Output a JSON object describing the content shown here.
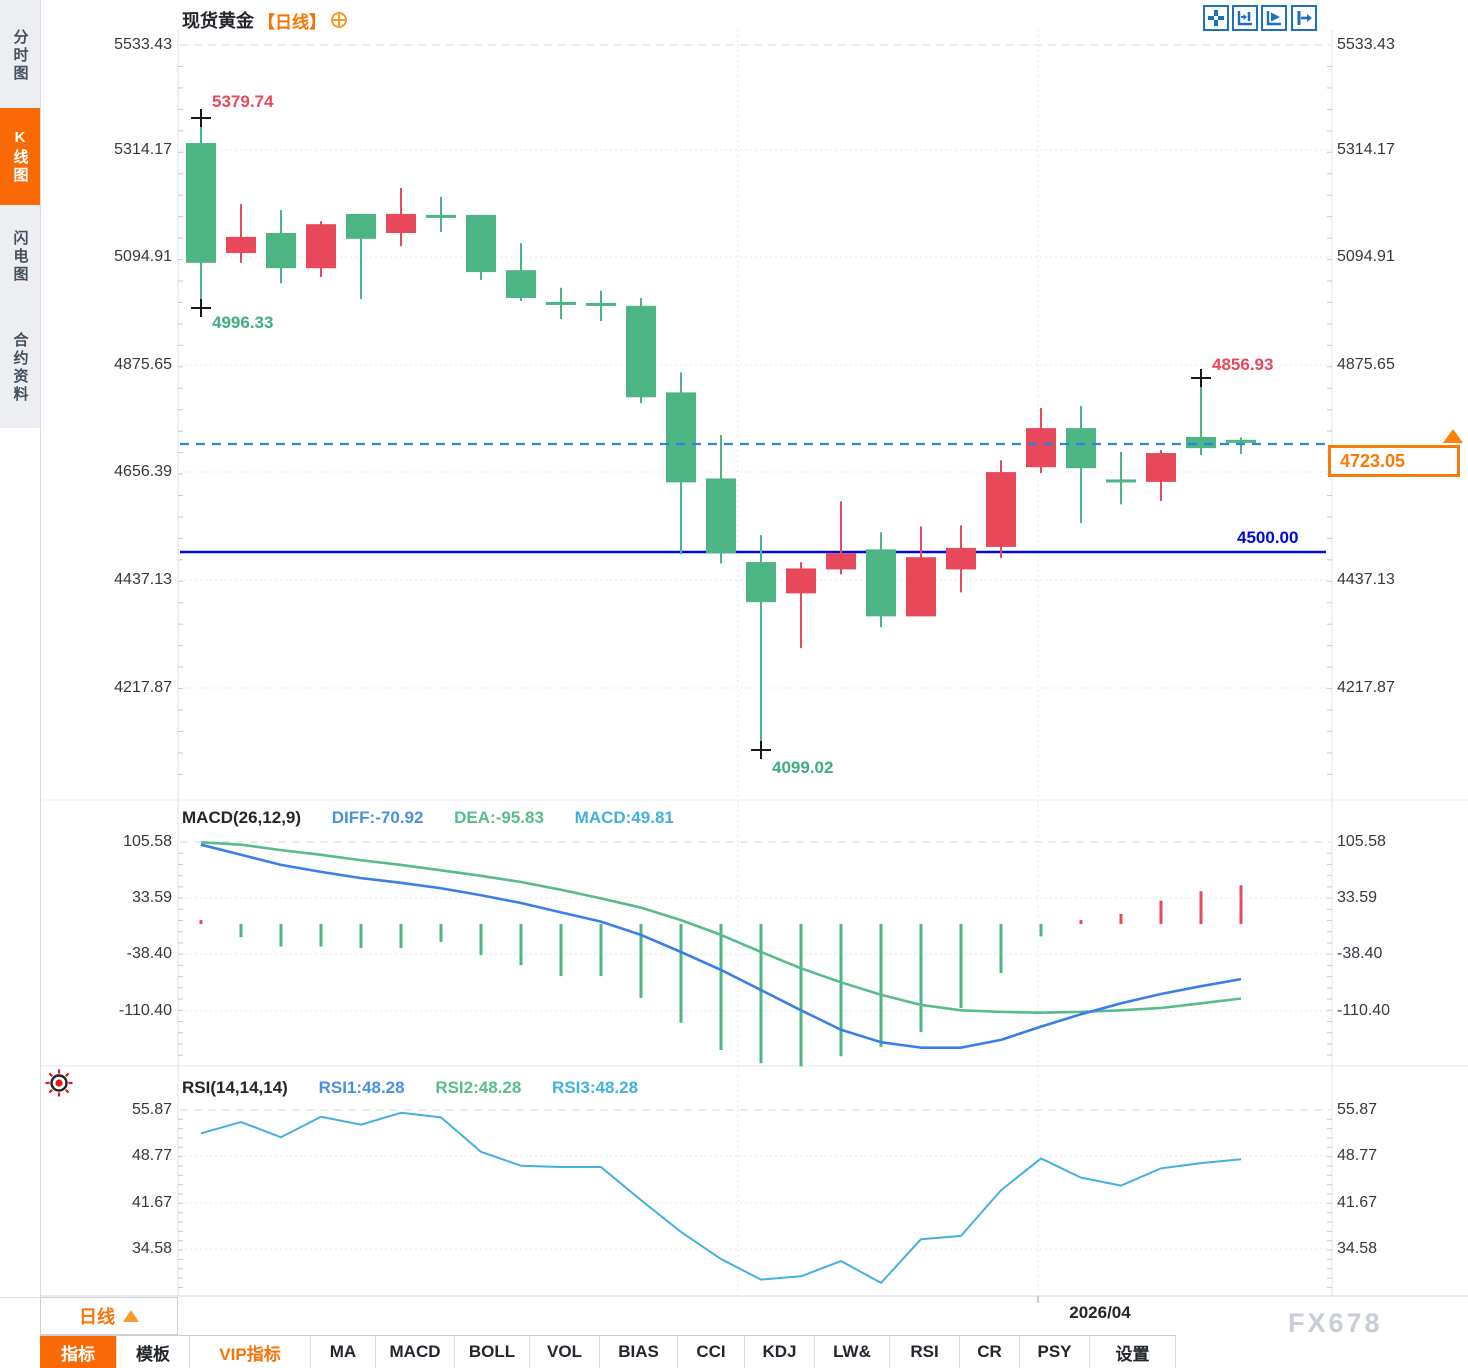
{
  "header": {
    "instrument": "现货黄金",
    "timeframe_tag": "【日线】"
  },
  "sidebar": {
    "items": [
      {
        "label": "分时图",
        "active": false
      },
      {
        "label": "K线图",
        "active": true
      },
      {
        "label": "闪电图",
        "active": false
      },
      {
        "label": "合约资料",
        "active": false
      }
    ]
  },
  "top_icons": [
    {
      "name": "move-crosshair-icon"
    },
    {
      "name": "fit-horizontal-icon"
    },
    {
      "name": "play-forward-icon"
    },
    {
      "name": "go-to-latest-icon"
    }
  ],
  "main_chart": {
    "y_axis_labels": [
      "5533.43",
      "5314.17",
      "5094.91",
      "4875.65",
      "4656.39",
      "4437.13",
      "4217.87"
    ],
    "annotations": {
      "swing_high": "5379.74",
      "first_low": "4996.33",
      "recent_high": "4856.93",
      "swing_low": "4099.02",
      "support_level": "4500.00",
      "current_price": "4723.05"
    },
    "x_axis_label": "2026/04",
    "watermark": "FX678"
  },
  "macd_panel": {
    "title": "MACD(26,12,9)",
    "diff_label": "DIFF:-70.92",
    "dea_label": "DEA:-95.83",
    "macd_label": "MACD:49.81",
    "y_axis_labels": [
      "105.58",
      "33.59",
      "-38.40",
      "-110.40"
    ]
  },
  "rsi_panel": {
    "title": "RSI(14,14,14)",
    "rsi1_label": "RSI1:48.28",
    "rsi2_label": "RSI2:48.28",
    "rsi3_label": "RSI3:48.28",
    "y_axis_labels": [
      "55.87",
      "48.77",
      "41.67",
      "34.58"
    ]
  },
  "bottom_bar": {
    "timeframe_button": "日线",
    "buttons": [
      {
        "label": "指标",
        "style": "active"
      },
      {
        "label": "模板",
        "style": ""
      },
      {
        "label": "VIP指标",
        "style": "vip"
      },
      {
        "label": "MA",
        "style": ""
      },
      {
        "label": "MACD",
        "style": ""
      },
      {
        "label": "BOLL",
        "style": ""
      },
      {
        "label": "VOL",
        "style": ""
      },
      {
        "label": "BIAS",
        "style": ""
      },
      {
        "label": "CCI",
        "style": ""
      },
      {
        "label": "KDJ",
        "style": ""
      },
      {
        "label": "LW&",
        "style": ""
      },
      {
        "label": "RSI",
        "style": ""
      },
      {
        "label": "CR",
        "style": ""
      },
      {
        "label": "PSY",
        "style": ""
      },
      {
        "label": "设置",
        "style": ""
      }
    ]
  },
  "colors": {
    "up_red": "#e8495a",
    "down_green": "#4cb583",
    "accent_orange": "#f97306",
    "support_line_blue": "#0008dd",
    "current_price_line": "#2188e8",
    "macd_diff_line": "#3a7fe8",
    "macd_dea_line": "#57bb8a",
    "rsi_line": "#45b0dd"
  },
  "chart_data": {
    "type": "candlestick",
    "instrument": "现货黄金",
    "interval": "日线",
    "price_axis_range": [
      4099.02,
      5533.43
    ],
    "candles": {
      "format": [
        "open",
        "high",
        "low",
        "close",
        "direction(u=red-up,d=green-down)"
      ],
      "data": [
        [
          5333,
          5379.74,
          4996.33,
          5088,
          "d"
        ],
        [
          5108,
          5208,
          5088,
          5141,
          "u"
        ],
        [
          5149,
          5196,
          5046,
          5077,
          "d"
        ],
        [
          5077,
          5173,
          5059,
          5167,
          "u"
        ],
        [
          5188,
          5188,
          5014,
          5137,
          "d"
        ],
        [
          5149,
          5241,
          5122,
          5188,
          "u"
        ],
        [
          5186,
          5223,
          5151,
          5181,
          "d"
        ],
        [
          5186,
          5186,
          5053,
          5069,
          "d"
        ],
        [
          5073,
          5128,
          5010,
          5016,
          "d"
        ],
        [
          5008,
          5037,
          4973,
          5002,
          "d"
        ],
        [
          5006,
          5031,
          4969,
          5000,
          "d"
        ],
        [
          5000,
          5016,
          4801,
          4813,
          "d"
        ],
        [
          4823,
          4864,
          4492,
          4639,
          "d"
        ],
        [
          4647,
          4736,
          4473,
          4494,
          "d"
        ],
        [
          4476,
          4531,
          4099.02,
          4394,
          "d"
        ],
        [
          4412,
          4476,
          4300,
          4463,
          "u"
        ],
        [
          4461,
          4600,
          4451,
          4494,
          "u"
        ],
        [
          4502,
          4537,
          4343,
          4365,
          "d"
        ],
        [
          4365,
          4549,
          4365,
          4486,
          "u"
        ],
        [
          4461,
          4551,
          4414,
          4505,
          "u"
        ],
        [
          4507,
          4684,
          4484,
          4660,
          "u"
        ],
        [
          4670,
          4791,
          4658,
          4750,
          "u"
        ],
        [
          4750,
          4795,
          4556,
          4668,
          "d"
        ],
        [
          4645,
          4701,
          4594,
          4640,
          "d"
        ],
        [
          4640,
          4705,
          4601,
          4699,
          "u"
        ],
        [
          4732,
          4856.93,
          4695,
          4709,
          "d"
        ],
        [
          4726,
          4731,
          4697,
          4723.05,
          "d"
        ]
      ]
    },
    "support_level": 4500.0,
    "current_price": 4723.05,
    "macd": {
      "params": [
        26,
        12,
        9
      ],
      "diff": [
        102,
        89,
        76,
        67,
        59,
        53,
        46,
        37,
        27,
        15,
        3,
        -14,
        -36,
        -59,
        -85,
        -111,
        -136,
        -152,
        -159,
        -159,
        -149,
        -132,
        -116,
        -102,
        -90,
        -80,
        -70.92
      ],
      "dea": [
        105,
        102,
        95,
        89,
        82,
        76,
        69,
        62,
        54,
        44,
        33,
        21,
        5,
        -14,
        -36,
        -57,
        -75,
        -91,
        -104,
        -111,
        -113,
        -114,
        -113,
        -111,
        -108,
        -102,
        -95.83
      ],
      "hist": [
        5,
        -17,
        -29,
        -29,
        -31,
        -31,
        -23,
        -40,
        -53,
        -67,
        -67,
        -95,
        -127,
        -162,
        -179,
        -183,
        -170,
        -158,
        -139,
        -108,
        -63,
        -16,
        5,
        13,
        30,
        42,
        49.81
      ]
    },
    "rsi": {
      "params": [
        14,
        14,
        14
      ],
      "values": [
        52.2,
        53.9,
        51.6,
        54.7,
        53.5,
        55.3,
        54.6,
        49.4,
        47.3,
        47.1,
        47.1,
        42.1,
        37.3,
        33.2,
        30.1,
        30.6,
        32.9,
        29.6,
        36.2,
        36.7,
        43.6,
        48.4,
        45.5,
        44.3,
        46.9,
        47.7,
        48.28
      ]
    }
  }
}
